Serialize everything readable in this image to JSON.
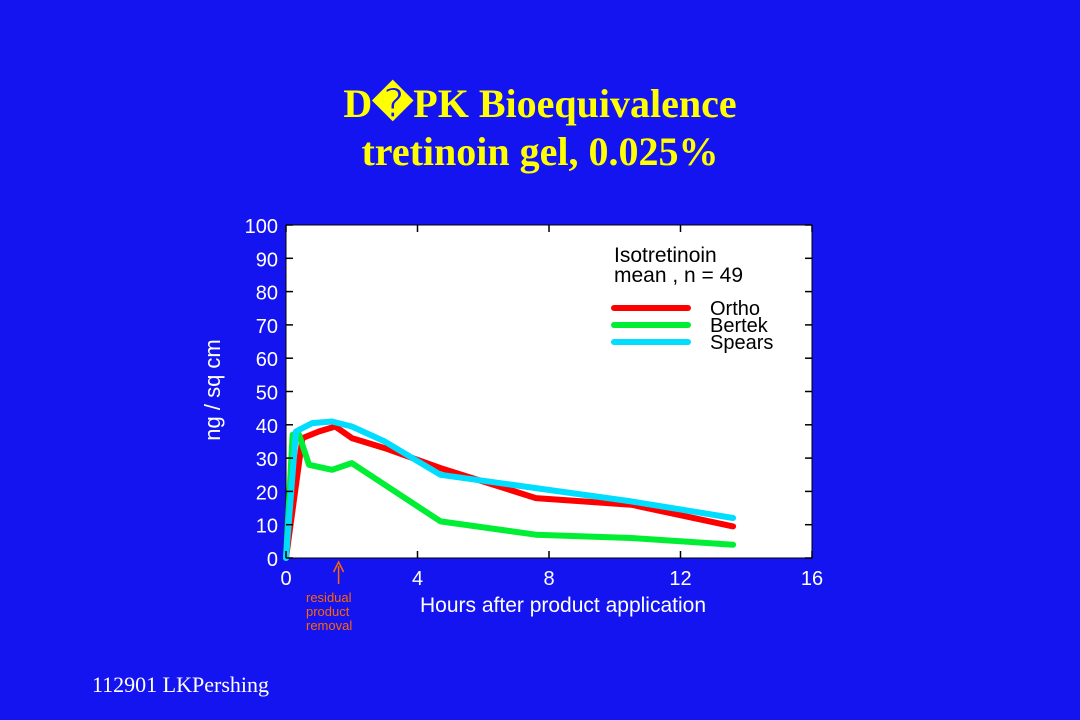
{
  "slide": {
    "title_line1": "D�PK Bioequivalence",
    "title_line2": "tretinoin gel, 0.025%",
    "footer": "112901  LKPershing"
  },
  "colors": {
    "background": "#1414f0",
    "title": "#ffff00",
    "plot_bg": "#ffffff",
    "ortho": "#ff0000",
    "bertek": "#00ee33",
    "spears": "#00ddff",
    "annotation": "#ff6600"
  },
  "chart_data": {
    "type": "line",
    "title": "",
    "xlabel": "Hours after product application",
    "ylabel": "ng / sq cm",
    "xlim": [
      0,
      16
    ],
    "ylim": [
      0,
      100
    ],
    "xticks": [
      0,
      4,
      8,
      12,
      16
    ],
    "yticks": [
      0,
      10,
      20,
      30,
      40,
      50,
      60,
      70,
      80,
      90,
      100
    ],
    "grid": false,
    "legend": {
      "placement": "top-right",
      "heading_line1": "Isotretinoin",
      "heading_line2": "mean , n = 49"
    },
    "series": [
      {
        "name": "Ortho",
        "color": "#ff0000",
        "points": [
          [
            0,
            0
          ],
          [
            0.5,
            36
          ],
          [
            1,
            38
          ],
          [
            1.5,
            39.5
          ],
          [
            2,
            36
          ],
          [
            3,
            33
          ],
          [
            4.7,
            27
          ],
          [
            7.6,
            18
          ],
          [
            10.5,
            16
          ],
          [
            13.6,
            9.5
          ]
        ]
      },
      {
        "name": "Bertek",
        "color": "#00ee33",
        "points": [
          [
            0,
            0
          ],
          [
            0.2,
            37
          ],
          [
            0.4,
            37
          ],
          [
            0.7,
            28
          ],
          [
            1.4,
            26.5
          ],
          [
            2,
            28.5
          ],
          [
            4.7,
            11
          ],
          [
            7.6,
            7
          ],
          [
            10.5,
            6
          ],
          [
            13.6,
            4
          ]
        ]
      },
      {
        "name": "Spears",
        "color": "#00ddff",
        "points": [
          [
            0,
            0
          ],
          [
            0.3,
            38
          ],
          [
            0.8,
            40.5
          ],
          [
            1.4,
            41
          ],
          [
            2,
            39.5
          ],
          [
            3,
            35
          ],
          [
            4.7,
            25
          ],
          [
            7.6,
            21
          ],
          [
            10.5,
            17
          ],
          [
            13.6,
            12
          ]
        ]
      }
    ],
    "annotations": [
      {
        "x": 1.6,
        "text_lines": [
          "residual",
          "product",
          "removal"
        ]
      }
    ]
  }
}
